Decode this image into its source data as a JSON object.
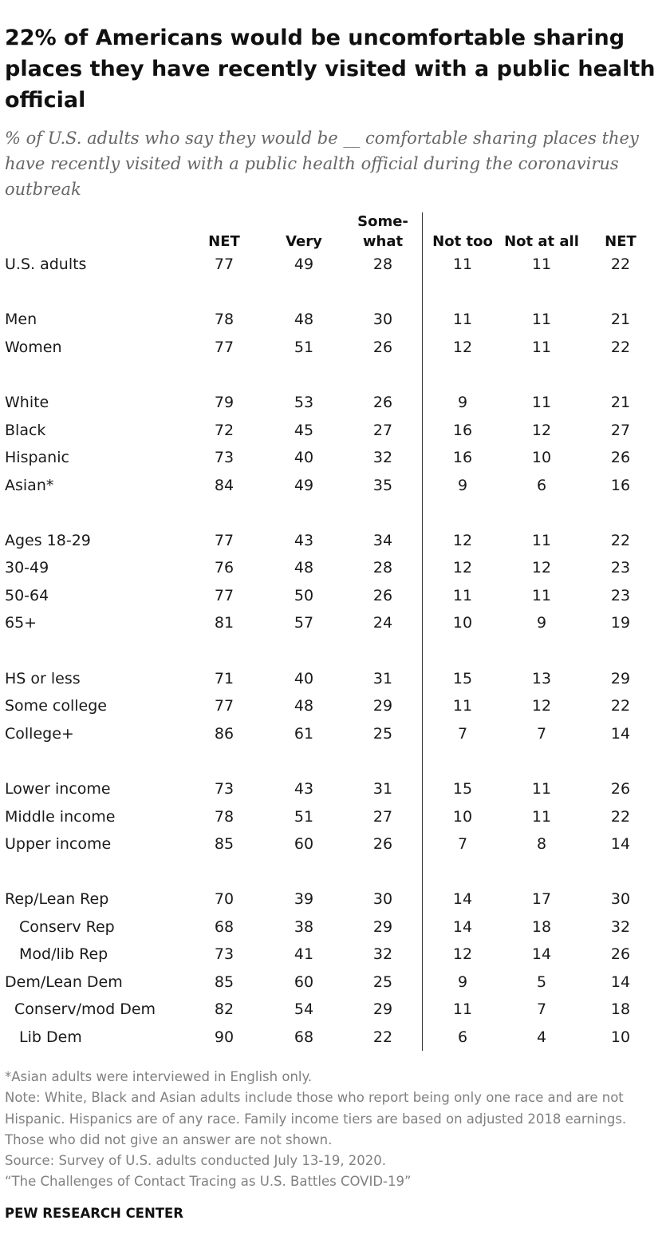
{
  "title": "22% of Americans would be uncomfortable sharing places they have recently visited with a public health official",
  "subtitle": "% of U.S. adults who say they would be __ comfortable sharing places they have recently visited with a public health official during the coronavirus outbreak",
  "chart_data": {
    "type": "table",
    "columns": [
      {
        "key": "net_comfortable",
        "line1": "",
        "line2": "NET"
      },
      {
        "key": "very",
        "line1": "",
        "line2": "Very"
      },
      {
        "key": "somewhat",
        "line1": "Some-",
        "line2": "what"
      },
      {
        "key": "not_too",
        "line1": "",
        "line2": "Not too"
      },
      {
        "key": "not_at_all",
        "line1": "",
        "line2": "Not at all"
      },
      {
        "key": "net_uncomfortable",
        "line1": "",
        "line2": "NET"
      }
    ],
    "rows": [
      {
        "label": "U.S. adults",
        "values": [
          77,
          49,
          28,
          11,
          11,
          22
        ],
        "indent": 0
      },
      {
        "label": "Men",
        "values": [
          78,
          48,
          30,
          11,
          11,
          21
        ],
        "indent": 0
      },
      {
        "label": "Women",
        "values": [
          77,
          51,
          26,
          12,
          11,
          22
        ],
        "indent": 0
      },
      {
        "label": "White",
        "values": [
          79,
          53,
          26,
          9,
          11,
          21
        ],
        "indent": 0
      },
      {
        "label": "Black",
        "values": [
          72,
          45,
          27,
          16,
          12,
          27
        ],
        "indent": 0
      },
      {
        "label": "Hispanic",
        "values": [
          73,
          40,
          32,
          16,
          10,
          26
        ],
        "indent": 0
      },
      {
        "label": "Asian*",
        "values": [
          84,
          49,
          35,
          9,
          6,
          16
        ],
        "indent": 0
      },
      {
        "label": "Ages 18-29",
        "values": [
          77,
          43,
          34,
          12,
          11,
          22
        ],
        "indent": 0
      },
      {
        "label": "30-49",
        "values": [
          76,
          48,
          28,
          12,
          12,
          23
        ],
        "indent": 0
      },
      {
        "label": "50-64",
        "values": [
          77,
          50,
          26,
          11,
          11,
          23
        ],
        "indent": 0
      },
      {
        "label": "65+",
        "values": [
          81,
          57,
          24,
          10,
          9,
          19
        ],
        "indent": 0
      },
      {
        "label": "HS or less",
        "values": [
          71,
          40,
          31,
          15,
          13,
          29
        ],
        "indent": 0
      },
      {
        "label": "Some college",
        "values": [
          77,
          48,
          29,
          11,
          12,
          22
        ],
        "indent": 0
      },
      {
        "label": "College+",
        "values": [
          86,
          61,
          25,
          7,
          7,
          14
        ],
        "indent": 0
      },
      {
        "label": "Lower income",
        "values": [
          73,
          43,
          31,
          15,
          11,
          26
        ],
        "indent": 0
      },
      {
        "label": "Middle income",
        "values": [
          78,
          51,
          27,
          10,
          11,
          22
        ],
        "indent": 0
      },
      {
        "label": "Upper income",
        "values": [
          85,
          60,
          26,
          7,
          8,
          14
        ],
        "indent": 0
      },
      {
        "label": "Rep/Lean Rep",
        "values": [
          70,
          39,
          30,
          14,
          17,
          30
        ],
        "indent": 0
      },
      {
        "label": "Conserv Rep",
        "values": [
          68,
          38,
          29,
          14,
          18,
          32
        ],
        "indent": 2
      },
      {
        "label": "Mod/lib Rep",
        "values": [
          73,
          41,
          32,
          12,
          14,
          26
        ],
        "indent": 2
      },
      {
        "label": "Dem/Lean Dem",
        "values": [
          85,
          60,
          25,
          9,
          5,
          14
        ],
        "indent": 0
      },
      {
        "label": "Conserv/mod Dem",
        "values": [
          82,
          54,
          29,
          11,
          7,
          18
        ],
        "indent": 1
      },
      {
        "label": "Lib Dem",
        "values": [
          90,
          68,
          22,
          6,
          4,
          10
        ],
        "indent": 2
      }
    ]
  },
  "notes": {
    "asian_note": "*Asian adults were interviewed in English only.",
    "note": "Note: White, Black and Asian adults include those who report being only one race and are not Hispanic. Hispanics are of any race. Family income tiers are based on adjusted 2018 earnings. Those who did not give an answer are not shown.",
    "source": "Source: Survey of U.S. adults conducted July 13-19, 2020.",
    "report": "“The Challenges of Contact Tracing as U.S. Battles COVID-19”"
  },
  "brand": "PEW RESEARCH CENTER"
}
